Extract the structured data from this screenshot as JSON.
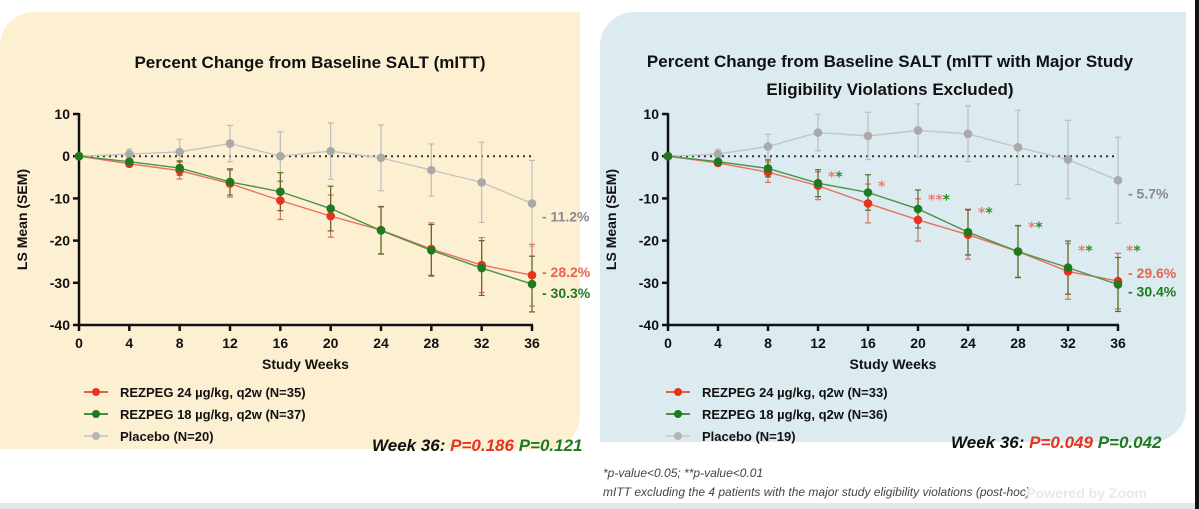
{
  "colors": {
    "rezpeg24": "#e8321e",
    "rezpeg18": "#1e7a1e",
    "placebo": "#a9a9a9",
    "rezpeg24_text": "#e8624e",
    "rezpeg18_text": "#1e7a1e",
    "placebo_text": "#8a8a8a",
    "panel_left_bg": "#fdf0d2",
    "panel_right_bg": "#dcebf0"
  },
  "chart_data": [
    {
      "type": "line",
      "title": "Percent Change from Baseline SALT (mITT)",
      "xlabel": "Study Weeks",
      "ylabel": "LS Mean (SEM)",
      "x": [
        0,
        4,
        8,
        12,
        16,
        20,
        24,
        28,
        32,
        36
      ],
      "xticks": [
        "0",
        "4",
        "8",
        "12",
        "16",
        "20",
        "24",
        "28",
        "32",
        "36"
      ],
      "yticks": [
        "10",
        "0",
        "-10",
        "-20",
        "-30",
        "-40"
      ],
      "ylim": [
        -40,
        10
      ],
      "xlim": [
        0,
        36
      ],
      "reference_line": 0,
      "series": [
        {
          "name": "Placebo (N=20)",
          "key": "placebo",
          "values": [
            0,
            0.5,
            1.0,
            3.0,
            0.0,
            1.2,
            -0.4,
            -3.3,
            -6.2,
            -11.2
          ],
          "sem": [
            0,
            1.2,
            3.0,
            4.3,
            5.8,
            6.7,
            7.8,
            6.2,
            9.5,
            10.2
          ],
          "end_label": "- 11.2%"
        },
        {
          "name": "REZPEG 24 µg/kg, q2w (N=35)",
          "key": "rezpeg24",
          "values": [
            0,
            -1.8,
            -3.4,
            -6.5,
            -10.5,
            -14.2,
            -17.5,
            -22.0,
            -25.8,
            -28.2
          ],
          "sem": [
            0,
            0.7,
            2.0,
            3.2,
            4.5,
            5.0,
            5.6,
            6.2,
            6.5,
            7.3
          ],
          "end_label": "- 28.2%"
        },
        {
          "name": "REZPEG 18 µg/kg, q2w (N=37)",
          "key": "rezpeg18",
          "values": [
            0,
            -1.3,
            -2.8,
            -6.1,
            -8.4,
            -12.4,
            -17.6,
            -22.3,
            -26.5,
            -30.3
          ],
          "sem": [
            0,
            0.5,
            1.7,
            3.1,
            4.5,
            5.3,
            5.6,
            6.1,
            6.5,
            6.6
          ],
          "end_label": "- 30.3%"
        }
      ],
      "significance_markers": [],
      "legend": "bottom-left",
      "annotation": {
        "prefix": "Week 36:",
        "p_rezpeg24": "P=0.186",
        "p_rezpeg18": "P=0.121"
      }
    },
    {
      "type": "line",
      "title": "Percent Change from Baseline SALT (mITT with Major Study Eligibility Violations Excluded)",
      "xlabel": "Study Weeks",
      "ylabel": "LS Mean (SEM)",
      "x": [
        0,
        4,
        8,
        12,
        16,
        20,
        24,
        28,
        32,
        36
      ],
      "xticks": [
        "0",
        "4",
        "8",
        "12",
        "16",
        "20",
        "24",
        "28",
        "32",
        "36"
      ],
      "yticks": [
        "10",
        "0",
        "-10",
        "-20",
        "-30",
        "-40"
      ],
      "ylim": [
        -40,
        10
      ],
      "xlim": [
        0,
        36
      ],
      "reference_line": 0,
      "series": [
        {
          "name": "Placebo (N=19)",
          "key": "placebo",
          "values": [
            0,
            0.5,
            2.3,
            5.6,
            4.8,
            6.1,
            5.3,
            2.1,
            -0.8,
            -5.7
          ],
          "sem": [
            0,
            1.2,
            2.9,
            4.3,
            5.6,
            6.3,
            6.6,
            8.8,
            9.3,
            10.2
          ],
          "end_label": "- 5.7%"
        },
        {
          "name": "REZPEG 24 µg/kg, q2w (N=33)",
          "key": "rezpeg24",
          "values": [
            0,
            -1.6,
            -3.8,
            -7.0,
            -11.2,
            -15.1,
            -18.6,
            -22.6,
            -27.3,
            -29.6
          ],
          "sem": [
            0,
            0.7,
            2.4,
            3.3,
            4.6,
            5.0,
            5.8,
            6.2,
            6.6,
            6.6
          ],
          "end_label": "- 29.6%"
        },
        {
          "name": "REZPEG 18 µg/kg, q2w (N=36)",
          "key": "rezpeg18",
          "values": [
            0,
            -1.3,
            -2.9,
            -6.4,
            -8.6,
            -12.5,
            -18.0,
            -22.6,
            -26.4,
            -30.4
          ],
          "sem": [
            0,
            0.6,
            2.0,
            3.2,
            4.2,
            4.5,
            5.4,
            6.1,
            6.3,
            6.4
          ],
          "end_label": "- 30.4%"
        }
      ],
      "significance_markers": [
        {
          "week": 12,
          "rezpeg24": "*",
          "rezpeg18": "*",
          "y": -6
        },
        {
          "week": 16,
          "rezpeg24": "*",
          "rezpeg18": "",
          "y": -8.2
        },
        {
          "week": 20,
          "rezpeg24": "**",
          "rezpeg18": "*",
          "y": -11.5
        },
        {
          "week": 24,
          "rezpeg24": "*",
          "rezpeg18": "*",
          "y": -14.5
        },
        {
          "week": 28,
          "rezpeg24": "*",
          "rezpeg18": "*",
          "y": -18
        },
        {
          "week": 32,
          "rezpeg24": "*",
          "rezpeg18": "*",
          "y": -23.5
        },
        {
          "week": 36,
          "rezpeg24": "*",
          "rezpeg18": "*",
          "y": -23.5
        }
      ],
      "legend": "bottom-left",
      "annotation": {
        "prefix": "Week 36:",
        "p_rezpeg24": "P=0.049",
        "p_rezpeg18": "P=0.042"
      }
    }
  ],
  "footnotes": {
    "line1": "*p-value<0.05; **p-value<0.01",
    "line2": "mITT excluding the 4 patients with the major study eligibility violations (post-hoc)"
  },
  "watermark": "Powered by Zoom"
}
